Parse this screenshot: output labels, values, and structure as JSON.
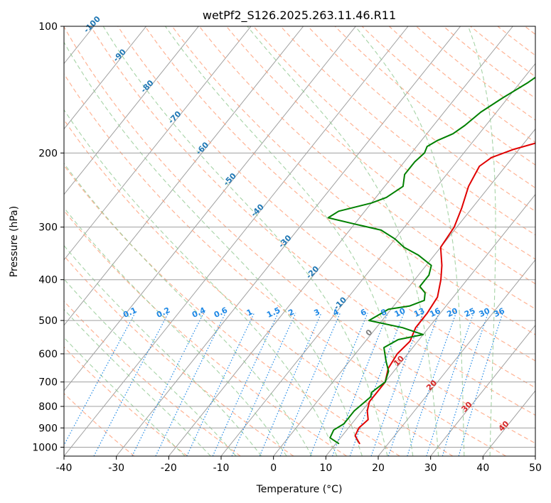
{
  "chart_data": {
    "type": "skewt",
    "title": "wetPf2_S126.2025.263.11.46.R11",
    "xlabel": "Temperature (°C)",
    "ylabel": "Pressure (hPa)",
    "xlim": [
      -40,
      50
    ],
    "ylim": [
      1050,
      100
    ],
    "yscale": "log",
    "x_ticks": [
      -40,
      -30,
      -20,
      -10,
      0,
      10,
      20,
      30,
      40,
      50
    ],
    "y_ticks": [
      100,
      200,
      300,
      400,
      500,
      600,
      700,
      800,
      900,
      1000
    ],
    "grid": true,
    "colors": {
      "temperature": "#e00000",
      "dewpoint": "#008000",
      "isotherm": "#a0a0a0",
      "dry_adiabat": "#ffa07a",
      "moist_adiabat": "#90c890",
      "mixing_ratio": "#1e88e5",
      "highlight": "#d2b48c"
    },
    "mixing_ratio_labels": [
      "0.1",
      "0.2",
      "0.4",
      "0.6",
      "1",
      "1.5",
      "2",
      "3",
      "4",
      "6",
      "8",
      "10",
      "13",
      "16",
      "20",
      "25",
      "30",
      "36"
    ],
    "dry_adiabat_labels": [
      "-100",
      "-90",
      "-80",
      "-70",
      "-60",
      "-50",
      "-40",
      "-30",
      "-20",
      "-10"
    ],
    "moist_adiabat_labels": [
      "0",
      "10",
      "20",
      "30",
      "40"
    ],
    "series": [
      {
        "id": "temperature",
        "points": [
          [
            14.5,
            980
          ],
          [
            12.5,
            940
          ],
          [
            12,
            900
          ],
          [
            12.5,
            860
          ],
          [
            11,
            820
          ],
          [
            10,
            780
          ],
          [
            10,
            740
          ],
          [
            10,
            700
          ],
          [
            8.5,
            650
          ],
          [
            8,
            600
          ],
          [
            8.5,
            560
          ],
          [
            7.5,
            520
          ],
          [
            7.5,
            480
          ],
          [
            7,
            440
          ],
          [
            5,
            400
          ],
          [
            3,
            370
          ],
          [
            0,
            335
          ],
          [
            -0.5,
            300
          ],
          [
            -2,
            270
          ],
          [
            -4,
            240
          ],
          [
            -5,
            215
          ],
          [
            -4,
            205
          ],
          [
            -1,
            196
          ],
          [
            3,
            188
          ],
          [
            7,
            180
          ],
          [
            10,
            170
          ],
          [
            13,
            160
          ],
          [
            17,
            148
          ],
          [
            22,
            133
          ],
          [
            25,
            125
          ],
          [
            28,
            115
          ],
          [
            30,
            108
          ],
          [
            31.5,
            100
          ]
        ]
      },
      {
        "id": "dewpoint",
        "points": [
          [
            10.5,
            980
          ],
          [
            8,
            950
          ],
          [
            7.5,
            910
          ],
          [
            8.5,
            880
          ],
          [
            8.5,
            820
          ],
          [
            9.5,
            760
          ],
          [
            9,
            740
          ],
          [
            10,
            700
          ],
          [
            9,
            660
          ],
          [
            7,
            625
          ],
          [
            4.5,
            580
          ],
          [
            6,
            555
          ],
          [
            10,
            540
          ],
          [
            5,
            520
          ],
          [
            -2.5,
            500
          ],
          [
            -0.5,
            470
          ],
          [
            3,
            462
          ],
          [
            5,
            448
          ],
          [
            4,
            430
          ],
          [
            2,
            415
          ],
          [
            2,
            390
          ],
          [
            1,
            370
          ],
          [
            -3,
            350
          ],
          [
            -7,
            335
          ],
          [
            -10,
            320
          ],
          [
            -14,
            305
          ],
          [
            -20,
            295
          ],
          [
            -26,
            285
          ],
          [
            -25,
            275
          ],
          [
            -20,
            263
          ],
          [
            -18,
            255
          ],
          [
            -16.5,
            240
          ],
          [
            -18,
            225
          ],
          [
            -18,
            210
          ],
          [
            -17.5,
            200
          ],
          [
            -18,
            193
          ],
          [
            -17,
            187
          ],
          [
            -15,
            180
          ],
          [
            -14,
            172
          ],
          [
            -13,
            160
          ],
          [
            -11,
            148
          ],
          [
            -8.5,
            136
          ],
          [
            -7,
            127
          ],
          [
            -5,
            118
          ],
          [
            -4,
            110
          ],
          [
            -3,
            105
          ],
          [
            -1.5,
            100
          ]
        ]
      }
    ]
  }
}
